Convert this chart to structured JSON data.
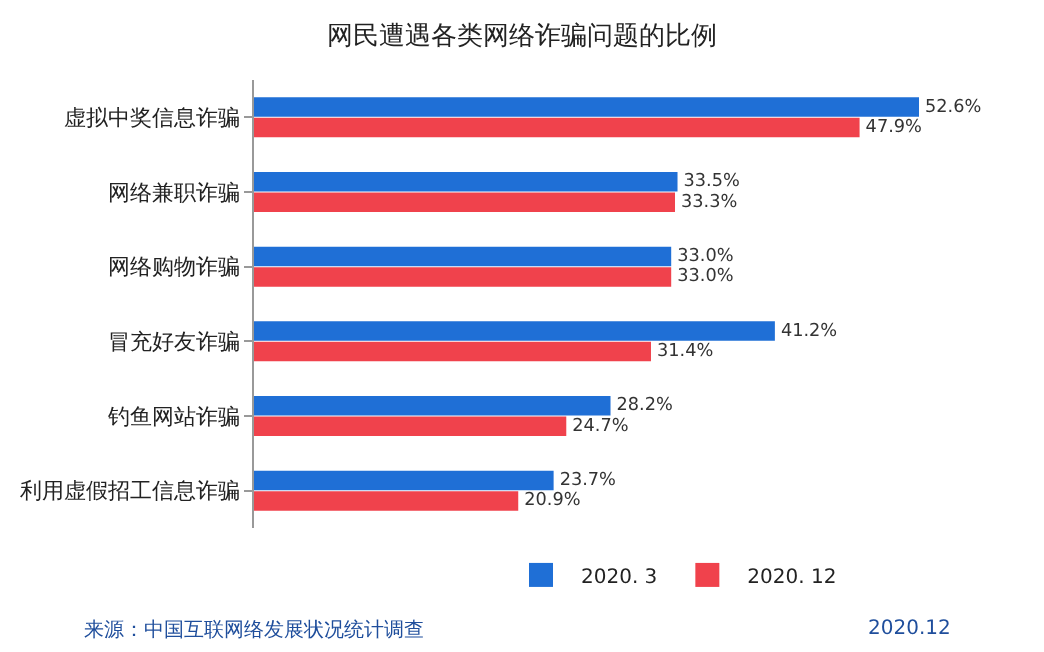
{
  "chart_data": {
    "type": "bar",
    "orientation": "horizontal",
    "title": "网民遭遇各类网络诈骗问题的比例",
    "categories": [
      "虚拟中奖信息诈骗",
      "网络兼职诈骗",
      "网络购物诈骗",
      "冒充好友诈骗",
      "钓鱼网站诈骗",
      "利用虚假招工信息诈骗"
    ],
    "series": [
      {
        "name": "2020. 3",
        "color": "#1f6fd6",
        "values": [
          52.6,
          33.5,
          33.0,
          41.2,
          28.2,
          23.7
        ],
        "value_labels": [
          "52.6%",
          "33.5%",
          "33.0%",
          "41.2%",
          "28.2%",
          "23.7%"
        ]
      },
      {
        "name": "2020. 12",
        "color": "#f0424c",
        "values": [
          47.9,
          33.3,
          33.0,
          31.4,
          24.7,
          20.9
        ],
        "value_labels": [
          "47.9%",
          "33.3%",
          "33.0%",
          "31.4%",
          "24.7%",
          "20.9%"
        ]
      }
    ],
    "legend": "bottom",
    "tick_labels": "y",
    "grid": false,
    "annotations": [
      "来源：中国互联网络发展状况统计调查",
      "2020.12"
    ]
  }
}
